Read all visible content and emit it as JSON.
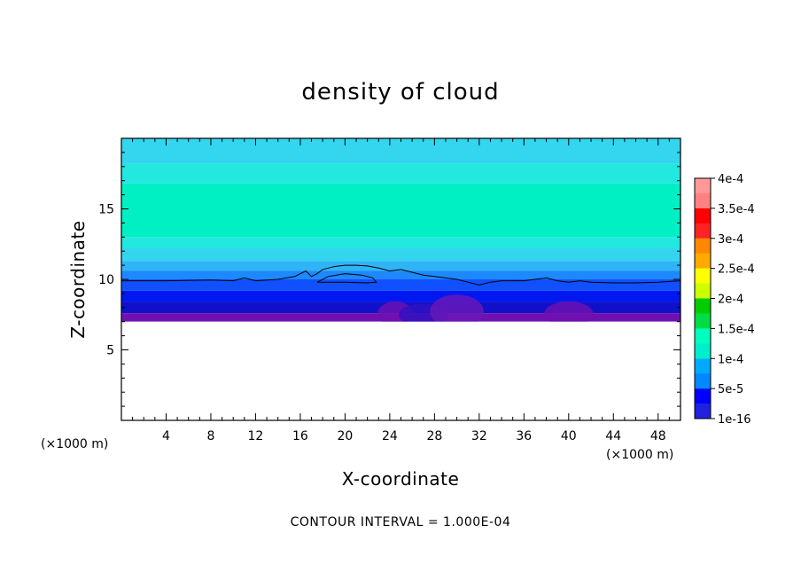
{
  "chart_data": {
    "type": "heatmap",
    "title": "density of cloud",
    "xlabel": "X-coordinate",
    "ylabel": "Z-coordinate",
    "x_unit": "(×1000 m)",
    "z_unit": "(×1000 m)",
    "xlim": [
      0,
      50
    ],
    "ylim": [
      0,
      20
    ],
    "x_ticks": [
      4,
      8,
      12,
      16,
      20,
      24,
      28,
      32,
      36,
      40,
      44,
      48
    ],
    "y_ticks": [
      5,
      10,
      15
    ],
    "note": "CONTOUR INTERVAL = 1.000E-04",
    "grid": false,
    "colorbar": {
      "labels": [
        "4e-4",
        "3.5e-4",
        "3e-4",
        "2.5e-4",
        "2e-4",
        "1.5e-4",
        "1e-4",
        "5e-5",
        "1e-16"
      ],
      "values": [
        0.0004,
        0.00035,
        0.0003,
        0.00025,
        0.0002,
        0.00015,
        0.0001,
        5e-05,
        1e-16
      ],
      "colors": [
        "#ff9999",
        "#ff0000",
        "#ff8800",
        "#ffff00",
        "#00cc00",
        "#00ffbb",
        "#00aaff",
        "#0000ff",
        "#8800aa"
      ]
    },
    "cloud_layer": {
      "base_km": 7,
      "layers": [
        {
          "z": [
            18.2,
            20.0
          ],
          "color": "#33d6ee"
        },
        {
          "z": [
            16.8,
            18.2
          ],
          "color": "#22e8e0"
        },
        {
          "z": [
            13.0,
            16.8
          ],
          "color": "#00f0c4"
        },
        {
          "z": [
            12.2,
            13.0
          ],
          "color": "#22e8e0"
        },
        {
          "z": [
            11.3,
            12.2
          ],
          "color": "#33d6ee"
        },
        {
          "z": [
            10.6,
            11.3
          ],
          "color": "#2fb4f6"
        },
        {
          "z": [
            10.0,
            10.6
          ],
          "color": "#1e88ff"
        },
        {
          "z": [
            9.2,
            10.0
          ],
          "color": "#1050ff"
        },
        {
          "z": [
            8.4,
            9.2
          ],
          "color": "#0018f0"
        },
        {
          "z": [
            7.6,
            8.4
          ],
          "color": "#1010c8"
        },
        {
          "z": [
            7.0,
            7.6
          ],
          "color": "#7010b0"
        }
      ],
      "contour_1e-4": {
        "x": [
          0,
          4,
          8,
          10,
          11,
          12,
          14,
          15.5,
          16.5,
          17,
          17.5,
          18,
          19,
          20,
          21,
          22,
          23,
          24,
          25,
          26,
          27,
          28,
          29,
          30,
          31,
          32,
          33,
          34,
          36,
          37,
          38,
          39,
          40,
          41,
          42,
          44,
          46,
          48,
          50
        ],
        "z": [
          9.9,
          9.9,
          9.95,
          9.9,
          10.1,
          9.9,
          10.0,
          10.2,
          10.6,
          10.2,
          10.4,
          10.7,
          10.9,
          11.0,
          11.0,
          10.95,
          10.8,
          10.6,
          10.7,
          10.5,
          10.3,
          10.2,
          10.1,
          10.0,
          9.8,
          9.6,
          9.8,
          9.9,
          9.9,
          10.0,
          10.1,
          9.9,
          9.8,
          9.9,
          9.8,
          9.75,
          9.75,
          9.8,
          9.9
        ]
      },
      "contour_loop": {
        "x": [
          17.5,
          18.5,
          20,
          21.5,
          22.5,
          22.8,
          22,
          20,
          18.5,
          17.5
        ],
        "z": [
          9.8,
          10.2,
          10.4,
          10.3,
          10.1,
          9.8,
          9.75,
          9.8,
          9.8,
          9.8
        ]
      }
    }
  }
}
